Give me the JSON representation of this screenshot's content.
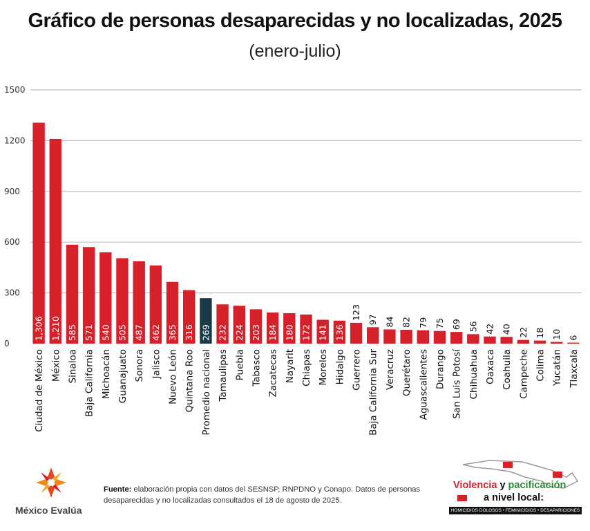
{
  "chart_data": {
    "type": "bar",
    "title": "Gráfico de personas desaparecidas y no localizadas, 2025",
    "subtitle": "(enero-julio)",
    "xlabel": "",
    "ylabel": "",
    "ylim": [
      0,
      1500
    ],
    "yticks": [
      "0",
      "300",
      "600",
      "900",
      "1200",
      "1500"
    ],
    "grid": true,
    "categories": [
      "Ciudad de México",
      "México",
      "Sinaloa",
      "Baja California",
      "Michoacán",
      "Guanajuato",
      "Sonora",
      "Jalisco",
      "Nuevo León",
      "Quintana Roo",
      "Promedio nacional",
      "Tamaulipas",
      "Puebla",
      "Tabasco",
      "Zacatecas",
      "Nayarit",
      "Chiapas",
      "Morelos",
      "Hidalgo",
      "Guerrero",
      "Baja California Sur",
      "Veracruz",
      "Querétaro",
      "Aguascalientes",
      "Durango",
      "San Luis Potosí",
      "Chihuahua",
      "Oaxaca",
      "Coahuila",
      "Campeche",
      "Colima",
      "Yucatán",
      "Tlaxcala"
    ],
    "values": [
      1306,
      1210,
      585,
      571,
      540,
      505,
      487,
      462,
      365,
      316,
      269,
      232,
      224,
      203,
      184,
      180,
      172,
      141,
      136,
      123,
      97,
      84,
      82,
      79,
      75,
      69,
      56,
      42,
      40,
      22,
      18,
      10,
      6
    ],
    "value_labels": [
      "1,306",
      "1,210",
      "585",
      "571",
      "540",
      "505",
      "487",
      "462",
      "365",
      "316",
      "269",
      "232",
      "224",
      "203",
      "184",
      "180",
      "172",
      "141",
      "136",
      "123",
      "97",
      "84",
      "82",
      "79",
      "75",
      "69",
      "56",
      "42",
      "40",
      "22",
      "18",
      "10",
      "6"
    ],
    "highlight": "Promedio nacional",
    "colors": {
      "bar": "#d6202a",
      "highlight": "#1a3a4a",
      "grid": "#bdbdbd"
    }
  },
  "footer": {
    "source_label": "Fuente:",
    "source_text": "elaboración propia con datos del SESNSP, RNPDNO y Conapo. Datos de personas desaparecidas y no localizadas consultados el 18 de agosto de 2025.",
    "org_name": "México Evalúa",
    "badge_line1_a": "Violencia",
    "badge_line1_b": "y",
    "badge_line1_c": "pacificación",
    "badge_line2": "a nivel local:",
    "badge_strip": "HOMICIDIOS DOLOSOS • FEMINICIDIOS • DESAPARICIONES"
  }
}
